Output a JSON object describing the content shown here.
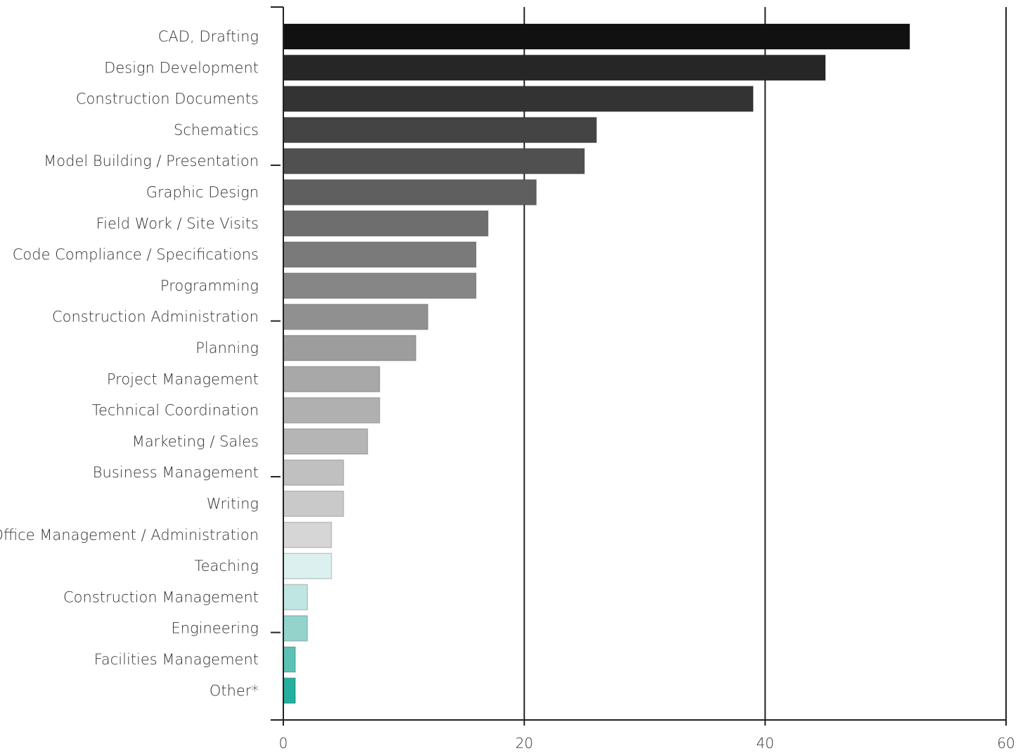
{
  "chart_data": {
    "type": "bar",
    "orientation": "horizontal",
    "categories": [
      "CAD, Drafting",
      "Design Development",
      "Construction Documents",
      "Schematics",
      "Model Building / Presentation",
      "Graphic Design",
      "Field Work / Site Visits",
      "Code Compliance / Specifications",
      "Programming",
      "Construction Administration",
      "Planning",
      "Project Management",
      "Technical Coordination",
      "Marketing / Sales",
      "Business Management",
      "Writing",
      "Office Management / Administration",
      "Teaching",
      "Construction Management",
      "Engineering",
      "Facilities Management",
      "Other*"
    ],
    "values": [
      52,
      45,
      39,
      26,
      25,
      21,
      17,
      16,
      16,
      12,
      11,
      8,
      8,
      7,
      5,
      5,
      4,
      4,
      2,
      2,
      1,
      1
    ],
    "bar_colors": [
      "#111111",
      "#262626",
      "#333333",
      "#444444",
      "#505050",
      "#5f5f5f",
      "#6e6e6e",
      "#7a7a7a",
      "#868686",
      "#909090",
      "#9d9d9d",
      "#a8a8a8",
      "#b0b0b0",
      "#b5b5b5",
      "#c0c0c0",
      "#c9c9c9",
      "#d6d6d6",
      "#dcf0ef",
      "#c0e6e2",
      "#92d4cc",
      "#5cc2b5",
      "#26ae9e"
    ],
    "xlim": [
      0,
      60
    ],
    "x_ticks": [
      "0",
      "20",
      "40",
      "60"
    ],
    "xlabel": "",
    "ylabel": "",
    "title": "",
    "grid": "vertical"
  }
}
